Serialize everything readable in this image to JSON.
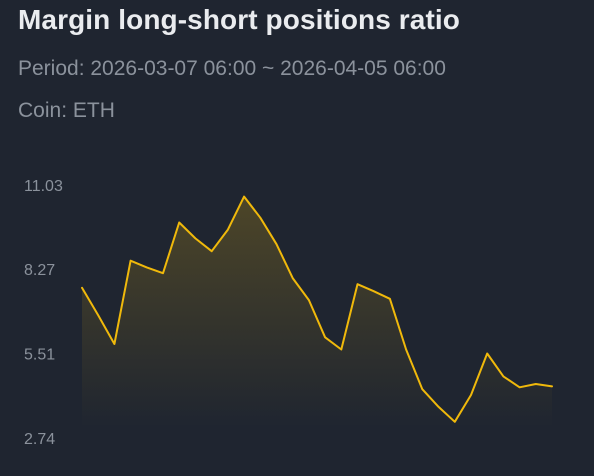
{
  "header": {
    "title": "Margin long-short positions ratio",
    "period": "Period: 2026-03-07 06:00 ~ 2026-04-05 06:00",
    "coin": "Coin: ETH"
  },
  "colors": {
    "background": "#1f2530",
    "line": "#f0b90b",
    "text_primary": "#eaecef",
    "text_secondary": "#8b929c"
  },
  "chart_data": {
    "type": "area",
    "title": "Margin long-short positions ratio",
    "xlabel": "",
    "ylabel": "",
    "y_ticks": [
      "11.03",
      "8.27",
      "5.51",
      "2.74"
    ],
    "ylim": [
      2.74,
      11.03
    ],
    "grid": false,
    "series": [
      {
        "values": [
          7.66,
          6.76,
          5.82,
          8.55,
          8.33,
          8.14,
          9.8,
          9.28,
          8.86,
          9.57,
          10.65,
          9.96,
          9.09,
          7.98,
          7.26,
          6.04,
          5.64,
          7.78,
          7.55,
          7.3,
          5.64,
          4.34,
          3.76,
          3.27,
          4.15,
          5.51,
          4.76,
          4.4,
          4.51,
          4.43
        ]
      }
    ]
  }
}
